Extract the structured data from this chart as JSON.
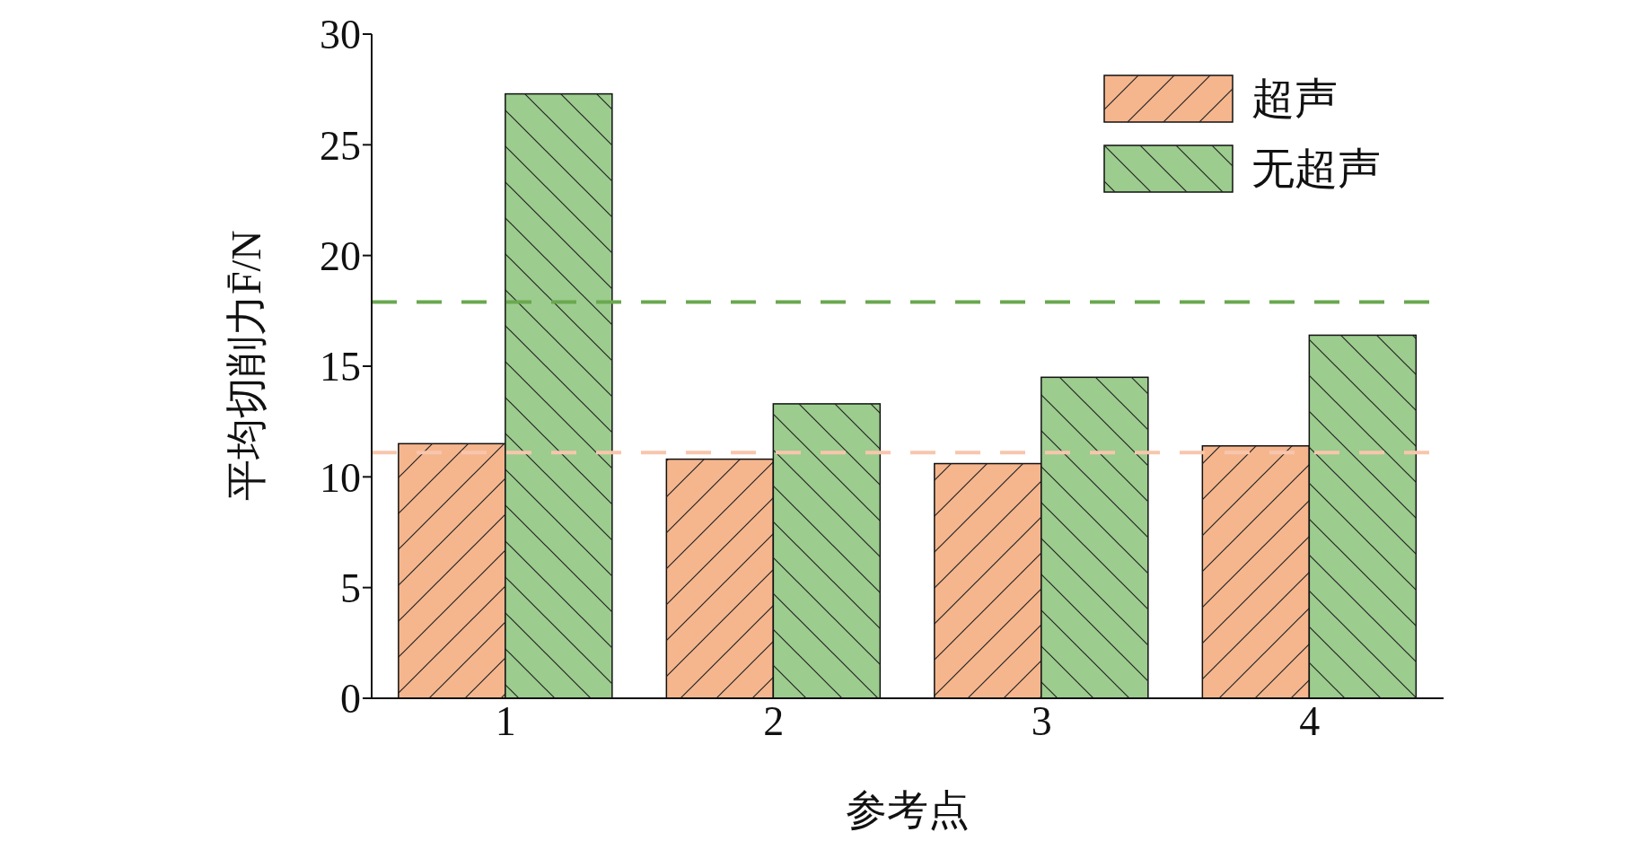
{
  "chart_data": {
    "type": "bar",
    "xlabel": "参考点",
    "ylabel": "平均切削力F̄/N",
    "categories": [
      "1",
      "2",
      "3",
      "4"
    ],
    "series": [
      {
        "name": "超声",
        "color": "#f5b68e",
        "values": [
          11.5,
          10.8,
          10.6,
          11.4
        ]
      },
      {
        "name": "无超声",
        "color": "#9ccc8e",
        "values": [
          27.3,
          13.3,
          14.5,
          16.4
        ]
      }
    ],
    "ylim": [
      0,
      30
    ],
    "yticks": [
      0,
      5,
      10,
      15,
      20,
      25,
      30
    ],
    "grid": false,
    "legend": "top right",
    "ref_lines": [
      {
        "axis": "y",
        "value": 17.9,
        "color": "#6aa84f",
        "line_style": "dashed"
      },
      {
        "axis": "y",
        "value": 11.1,
        "color": "#f8c6ad",
        "line_style": "dashed"
      }
    ]
  }
}
